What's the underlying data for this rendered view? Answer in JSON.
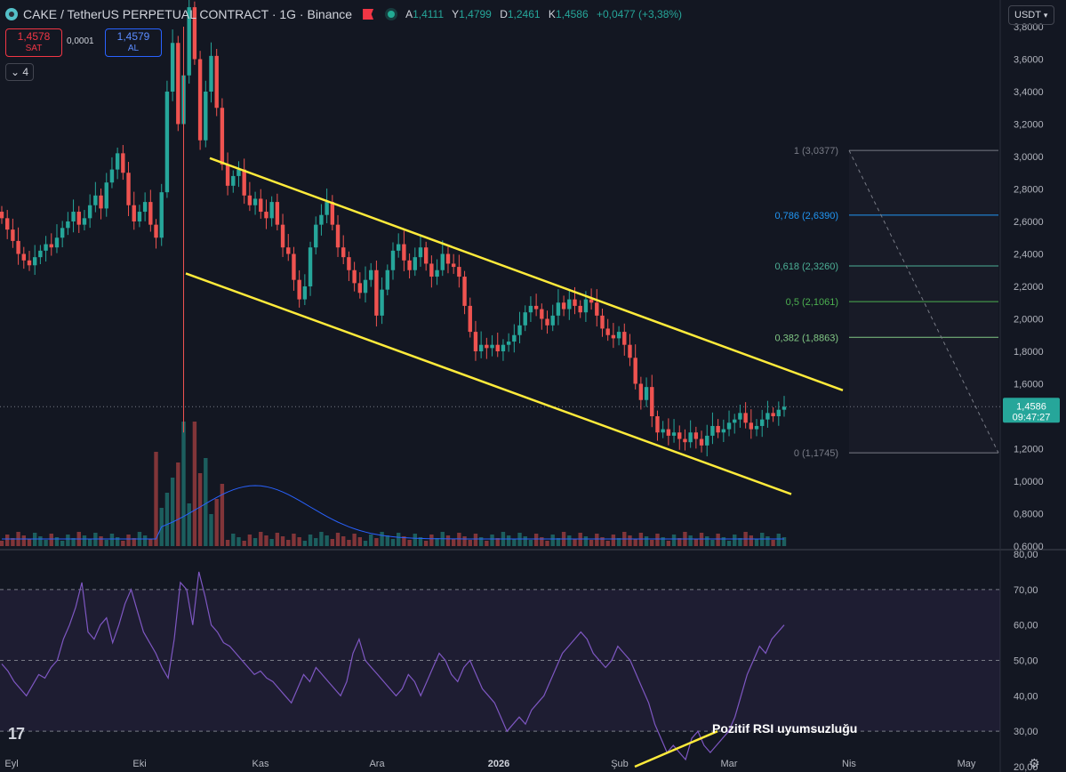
{
  "header": {
    "title": "CAKE / TetherUS PERPETUAL CONTRACT · 1G · Binance",
    "ohlc": [
      {
        "k": "A",
        "v": "1,4111"
      },
      {
        "k": "Y",
        "v": "1,4799"
      },
      {
        "k": "D",
        "v": "1,2461"
      },
      {
        "k": "K",
        "v": "1,4586"
      }
    ],
    "change": "+0,0477 (+3,38%)"
  },
  "trade": {
    "sell_price": "1,4578",
    "sell_label": "SAT",
    "buy_price": "1,4579",
    "buy_label": "AL",
    "spread": "0,0001"
  },
  "indicators_collapsed_count": "4",
  "currency_label": "USDT",
  "annotation": "Pozitif RSI uyumsuzluğu",
  "chart_data": {
    "type": "candlestick",
    "price_axis": {
      "min": 0.6,
      "max": 3.8,
      "ticks": [
        "3,8000",
        "3,6000",
        "3,4000",
        "3,2000",
        "3,0000",
        "2,8000",
        "2,6000",
        "2,4000",
        "2,2000",
        "2,0000",
        "1,8000",
        "1,6000",
        "1,4000",
        "1,2000",
        "1,0000",
        "0,8000",
        "0,6000"
      ]
    },
    "rsi_axis": {
      "min": 20,
      "max": 80,
      "ticks": [
        "80,00",
        "70,00",
        "60,00",
        "50,00",
        "40,00",
        "30,00",
        "20,00"
      ],
      "bands": [
        70,
        50,
        30
      ]
    },
    "time_labels": [
      "Eyl",
      "Eki",
      "Kas",
      "Ara",
      "2026",
      "Şub",
      "Mar",
      "Nis",
      "May"
    ],
    "last_price": {
      "value": "1,4586",
      "countdown": "09:47:27"
    },
    "fib_levels": [
      {
        "ratio": "1",
        "price": "3,0377",
        "value": 3.0377,
        "color": "#787b86"
      },
      {
        "ratio": "0,786",
        "price": "2,6390",
        "value": 2.639,
        "color": "#2196f3"
      },
      {
        "ratio": "0,618",
        "price": "2,3260",
        "value": 2.326,
        "color": "#4caf96"
      },
      {
        "ratio": "0,5",
        "price": "2,1061",
        "value": 2.1061,
        "color": "#4caf50"
      },
      {
        "ratio": "0,382",
        "price": "1,8863",
        "value": 1.8863,
        "color": "#81c784"
      },
      {
        "ratio": "0",
        "price": "1,1745",
        "value": 1.1745,
        "color": "#787b86"
      }
    ],
    "ohlc_sequence_close": [
      2.62,
      2.55,
      2.48,
      2.4,
      2.36,
      2.33,
      2.38,
      2.42,
      2.46,
      2.44,
      2.5,
      2.56,
      2.6,
      2.66,
      2.58,
      2.62,
      2.7,
      2.76,
      2.68,
      2.84,
      2.92,
      3.02,
      2.9,
      2.7,
      2.6,
      2.66,
      2.72,
      2.58,
      2.5,
      2.78,
      3.4,
      3.7,
      3.2,
      3.5,
      3.92,
      3.6,
      3.1,
      3.4,
      3.62,
      3.3,
      2.95,
      2.82,
      2.88,
      2.92,
      2.76,
      2.7,
      2.74,
      2.66,
      2.62,
      2.72,
      2.58,
      2.44,
      2.4,
      2.24,
      2.12,
      2.2,
      2.44,
      2.58,
      2.64,
      2.72,
      2.58,
      2.44,
      2.38,
      2.3,
      2.22,
      2.16,
      2.24,
      2.3,
      2.02,
      2.18,
      2.3,
      2.42,
      2.46,
      2.36,
      2.3,
      2.38,
      2.44,
      2.34,
      2.26,
      2.3,
      2.4,
      2.34,
      2.32,
      2.26,
      2.08,
      1.92,
      1.8,
      1.84,
      1.82,
      1.84,
      1.8,
      1.84,
      1.86,
      1.9,
      1.96,
      2.04,
      2.08,
      2.06,
      2.0,
      1.96,
      2.02,
      2.1,
      2.06,
      2.12,
      2.08,
      2.04,
      2.12,
      2.1,
      2.02,
      1.94,
      1.9,
      1.88,
      1.92,
      1.84,
      1.76,
      1.6,
      1.5,
      1.58,
      1.4,
      1.3,
      1.32,
      1.28,
      1.3,
      1.26,
      1.24,
      1.3,
      1.26,
      1.22,
      1.28,
      1.34,
      1.3,
      1.32,
      1.36,
      1.38,
      1.42,
      1.36,
      1.32,
      1.34,
      1.38,
      1.42,
      1.4,
      1.44,
      1.4586
    ],
    "trend_channel": {
      "upper": [
        [
          2.99,
          "Kas start"
        ],
        [
          1.56,
          "beyond Mar"
        ]
      ],
      "lower": [
        [
          2.28,
          "Eki"
        ],
        [
          0.92,
          "beyond Mar"
        ]
      ]
    },
    "rsi_series": [
      49,
      47,
      44,
      42,
      40,
      43,
      46,
      45,
      48,
      50,
      56,
      60,
      65,
      72,
      58,
      56,
      60,
      62,
      55,
      60,
      66,
      70,
      64,
      58,
      55,
      52,
      48,
      45,
      56,
      72,
      70,
      60,
      75,
      68,
      60,
      58,
      55,
      54,
      52,
      50,
      48,
      46,
      47,
      45,
      44,
      42,
      40,
      38,
      42,
      46,
      44,
      48,
      46,
      44,
      42,
      40,
      44,
      52,
      56,
      50,
      48,
      46,
      44,
      42,
      40,
      42,
      46,
      44,
      40,
      44,
      48,
      52,
      50,
      46,
      44,
      48,
      50,
      46,
      42,
      40,
      38,
      34,
      30,
      32,
      34,
      32,
      36,
      38,
      40,
      44,
      48,
      52,
      54,
      56,
      58,
      56,
      52,
      50,
      48,
      50,
      54,
      52,
      50,
      46,
      42,
      38,
      32,
      28,
      24,
      26,
      24,
      22,
      28,
      30,
      26,
      24,
      26,
      28,
      30,
      34,
      40,
      46,
      50,
      54,
      52,
      56,
      58,
      60
    ],
    "series": [
      {
        "name": "RSI",
        "values_ref": "rsi_series"
      }
    ]
  }
}
